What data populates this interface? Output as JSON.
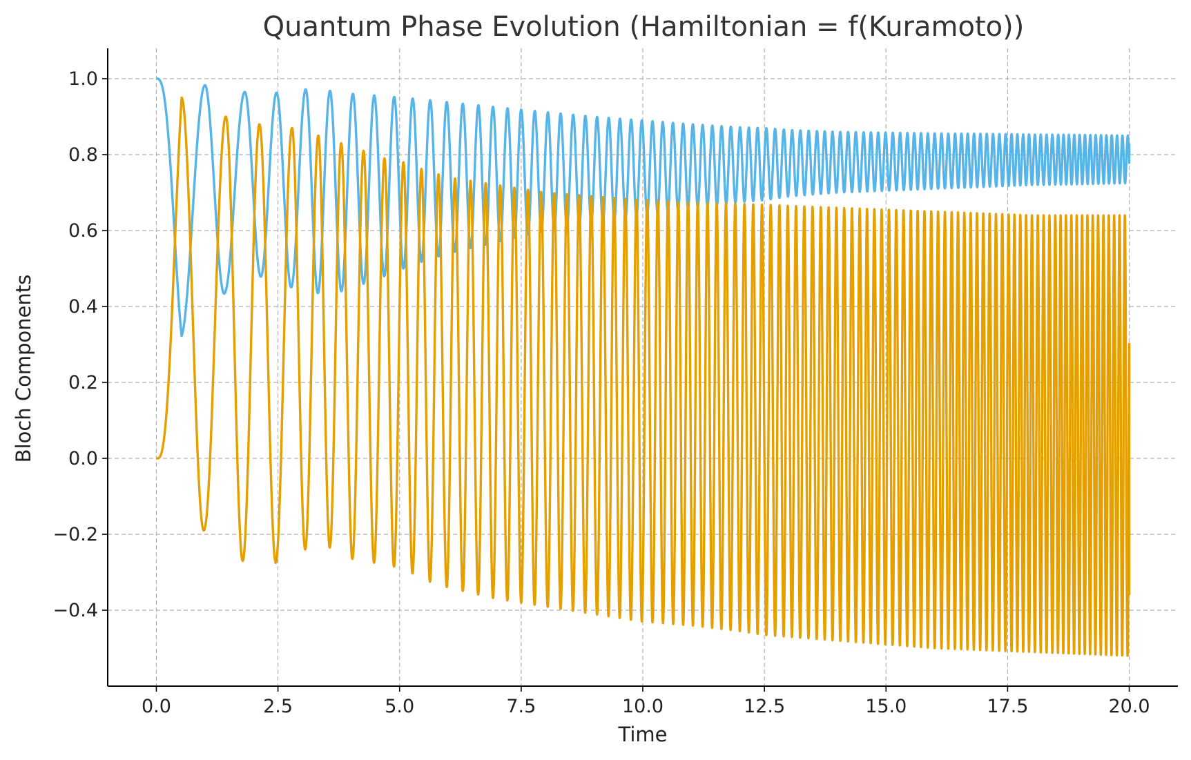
{
  "chart_data": {
    "type": "line",
    "title": "Quantum Phase Evolution (Hamiltonian = f(Kuramoto))",
    "xlabel": "Time",
    "ylabel": "Bloch Components",
    "xlim": [
      -1.0,
      21.0
    ],
    "ylim": [
      -0.6,
      1.08
    ],
    "grid": true,
    "legend": "none",
    "x_ticks": [
      0.0,
      2.5,
      5.0,
      7.5,
      10.0,
      12.5,
      15.0,
      17.5,
      20.0
    ],
    "x_tick_labels": [
      "0.0",
      "2.5",
      "5.0",
      "7.5",
      "10.0",
      "12.5",
      "15.0",
      "17.5",
      "20.0"
    ],
    "y_ticks": [
      -0.4,
      -0.2,
      0.0,
      0.2,
      0.4,
      0.6,
      0.8,
      1.0
    ],
    "y_tick_labels": [
      "−0.4",
      "−0.2",
      "0.0",
      "0.2",
      "0.4",
      "0.6",
      "0.8",
      "1.0"
    ],
    "series": [
      {
        "color": "#56b4e9",
        "x": [
          0.0,
          0.03,
          0.52,
          1.0,
          1.43,
          1.82,
          2.12,
          2.47,
          2.79,
          3.07,
          3.33,
          3.57,
          3.8,
          4.04,
          4.26,
          4.48,
          4.69,
          4.89,
          5.08,
          5.5,
          6.0,
          7.0,
          8.0,
          9.0,
          10.0,
          11.0,
          12.0,
          12.5,
          13.0,
          14.0,
          15.0,
          16.0,
          17.0,
          18.0,
          19.0,
          20.0
        ],
        "envelope_upper": [
          1.0,
          1.0,
          0.98,
          0.983,
          0.975,
          0.965,
          0.96,
          0.963,
          0.968,
          0.972,
          0.972,
          0.968,
          0.963,
          0.96,
          0.958,
          0.956,
          0.954,
          0.952,
          0.95,
          0.945,
          0.938,
          0.925,
          0.912,
          0.9,
          0.89,
          0.88,
          0.872,
          0.87,
          0.865,
          0.86,
          0.858,
          0.856,
          0.855,
          0.853,
          0.852,
          0.85
        ],
        "envelope_lower": [
          1.0,
          1.0,
          0.32,
          0.34,
          0.44,
          0.47,
          0.48,
          0.46,
          0.45,
          0.44,
          0.435,
          0.435,
          0.44,
          0.45,
          0.46,
          0.47,
          0.48,
          0.49,
          0.5,
          0.52,
          0.54,
          0.57,
          0.6,
          0.62,
          0.64,
          0.66,
          0.675,
          0.68,
          0.69,
          0.7,
          0.705,
          0.71,
          0.715,
          0.72,
          0.722,
          0.725
        ],
        "oscillation_peaks": [
          0.0,
          1.0,
          1.82,
          2.47,
          3.07,
          3.57,
          4.04,
          4.48,
          4.89,
          5.27,
          5.63,
          5.97,
          6.3,
          6.62,
          6.92,
          7.22,
          7.5,
          7.78,
          8.05,
          8.31,
          8.57,
          8.82,
          9.06,
          9.3,
          9.53,
          9.76,
          9.98,
          10.2,
          10.41,
          10.62,
          10.83,
          11.03,
          11.23,
          11.43,
          11.62,
          11.81,
          12.0,
          12.18,
          12.36,
          12.54,
          12.72,
          12.9,
          13.07,
          13.24,
          13.41,
          13.58,
          13.74,
          13.9,
          14.06,
          14.22,
          14.38,
          14.54,
          14.69,
          14.84,
          14.99,
          15.14,
          15.29,
          15.44,
          15.58,
          15.72,
          15.86,
          16.0,
          16.14,
          16.28,
          16.42,
          16.55,
          16.68,
          16.81,
          16.94,
          17.07,
          17.2,
          17.33,
          17.46,
          17.58,
          17.7,
          17.82,
          17.94,
          18.06,
          18.18,
          18.3,
          18.42,
          18.54,
          18.65,
          18.76,
          18.87,
          18.98,
          19.09,
          19.2,
          19.31,
          19.42,
          19.53,
          19.64,
          19.75,
          19.86,
          19.97
        ],
        "end_value": 0.83
      },
      {
        "color": "#e69f00",
        "x": [
          0.0,
          0.03,
          0.52,
          1.0,
          1.43,
          1.82,
          2.12,
          2.47,
          2.79,
          3.07,
          3.33,
          3.57,
          3.8,
          4.04,
          4.26,
          4.48,
          4.69,
          4.89,
          5.08,
          5.5,
          6.0,
          7.0,
          8.0,
          9.0,
          10.0,
          11.0,
          12.0,
          12.5,
          13.0,
          14.0,
          15.0,
          16.0,
          17.0,
          18.0,
          19.0,
          20.0
        ],
        "envelope_upper": [
          0.0,
          0.0,
          0.95,
          0.93,
          0.9,
          0.89,
          0.88,
          0.875,
          0.87,
          0.86,
          0.85,
          0.84,
          0.83,
          0.82,
          0.81,
          0.8,
          0.79,
          0.785,
          0.78,
          0.76,
          0.74,
          0.72,
          0.7,
          0.69,
          0.68,
          0.675,
          0.67,
          0.668,
          0.665,
          0.66,
          0.655,
          0.65,
          0.645,
          0.64,
          0.64,
          0.64
        ],
        "envelope_lower": [
          0.0,
          0.0,
          -0.19,
          -0.19,
          -0.27,
          -0.27,
          -0.275,
          -0.275,
          -0.24,
          -0.24,
          -0.235,
          -0.235,
          -0.26,
          -0.265,
          -0.27,
          -0.275,
          -0.28,
          -0.285,
          -0.29,
          -0.32,
          -0.34,
          -0.37,
          -0.39,
          -0.41,
          -0.43,
          -0.44,
          -0.455,
          -0.465,
          -0.47,
          -0.48,
          -0.49,
          -0.5,
          -0.505,
          -0.51,
          -0.515,
          -0.52
        ],
        "oscillation_peaks": [
          0.52,
          1.43,
          2.12,
          2.79,
          3.33,
          3.8,
          4.26,
          4.69,
          5.08,
          5.45,
          5.8,
          6.14,
          6.46,
          6.77,
          7.07,
          7.36,
          7.64,
          7.91,
          8.18,
          8.44,
          8.69,
          8.94,
          9.18,
          9.41,
          9.64,
          9.87,
          10.09,
          10.31,
          10.52,
          10.73,
          10.93,
          11.13,
          11.33,
          11.52,
          11.71,
          11.9,
          12.09,
          12.27,
          12.45,
          12.63,
          12.81,
          12.98,
          13.15,
          13.32,
          13.49,
          13.66,
          13.82,
          13.98,
          14.14,
          14.3,
          14.46,
          14.61,
          14.76,
          14.91,
          15.06,
          15.21,
          15.36,
          15.51,
          15.65,
          15.79,
          15.93,
          16.07,
          16.21,
          16.35,
          16.48,
          16.61,
          16.74,
          16.87,
          17.0,
          17.13,
          17.26,
          17.39,
          17.52,
          17.64,
          17.76,
          17.88,
          18.0,
          18.12,
          18.24,
          18.36,
          18.48,
          18.59,
          18.7,
          18.81,
          18.92,
          19.03,
          19.14,
          19.25,
          19.36,
          19.47,
          19.58,
          19.69,
          19.8,
          19.91
        ],
        "end_value": -0.36
      }
    ]
  }
}
